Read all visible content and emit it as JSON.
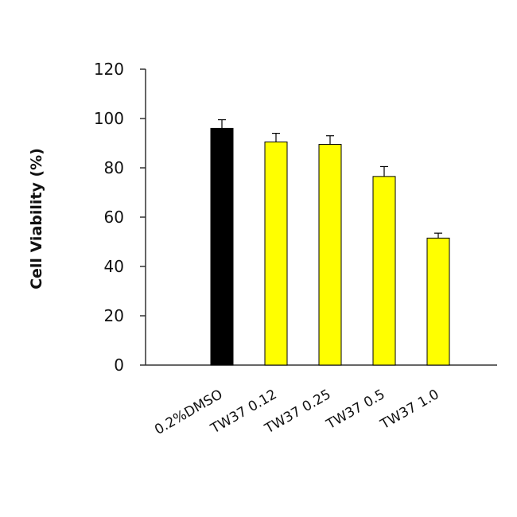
{
  "chart_data": {
    "type": "bar",
    "title": "",
    "xlabel": "",
    "ylabel": "Cell Viability (%)",
    "ylim": [
      0,
      120
    ],
    "yticks": [
      0,
      20,
      40,
      60,
      80,
      100,
      120
    ],
    "grid": false,
    "categories": [
      "0.2%DMSO",
      "TW37 0.12",
      "TW37 0.25",
      "TW37 0.5",
      "TW37 1.0"
    ],
    "values": [
      96,
      90.5,
      89.5,
      76.5,
      51.5
    ],
    "errors": [
      3.5,
      3.5,
      3.5,
      4,
      2
    ],
    "colors": [
      "#000000",
      "#ffff00",
      "#ffff00",
      "#ffff00",
      "#ffff00"
    ],
    "edge_color": "#000000"
  }
}
